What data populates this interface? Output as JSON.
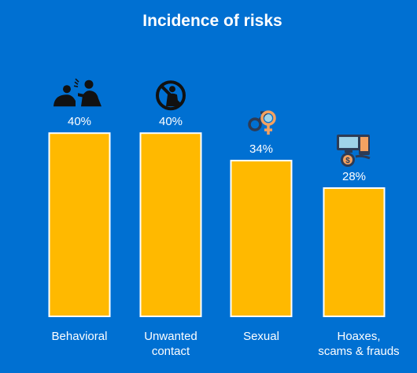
{
  "chart_data": {
    "type": "bar",
    "title": "Incidence of risks",
    "categories": [
      [
        "Behavioral"
      ],
      [
        "Unwanted",
        "contact"
      ],
      [
        "Sexual"
      ],
      [
        "Hoaxes,",
        "scams & frauds"
      ]
    ],
    "values": [
      40,
      40,
      34,
      28
    ],
    "value_labels": [
      "40%",
      "40%",
      "34%",
      "28%"
    ],
    "icons": [
      "behavioral-risk-icon",
      "unwanted-contact-icon",
      "gender-symbols-icon",
      "scam-fraud-icon"
    ],
    "grid": false,
    "legend": "none",
    "colors": {
      "background": "#0070d2",
      "bar": "#ffb900",
      "bar_outline": "#ffffff",
      "text": "#ffffff"
    }
  }
}
